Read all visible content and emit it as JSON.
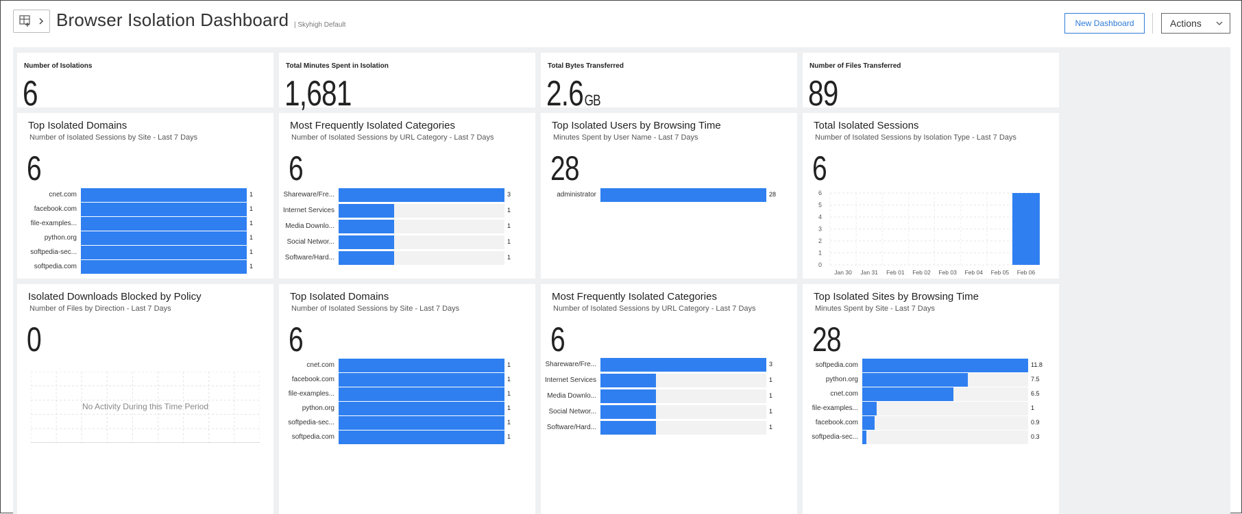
{
  "header": {
    "title": "Browser Isolation Dashboard",
    "subtitle": "| Skyhigh Default",
    "new_dashboard_label": "New Dashboard",
    "actions_label": "Actions"
  },
  "kpis": [
    {
      "label": "Number of Isolations",
      "value": "6",
      "unit": ""
    },
    {
      "label": "Total Minutes Spent in Isolation",
      "value": "1,681",
      "unit": ""
    },
    {
      "label": "Total Bytes Transferred",
      "value": "2.6",
      "unit": "GB"
    },
    {
      "label": "Number of Files Transferred",
      "value": "89",
      "unit": ""
    }
  ],
  "widgets": [
    {
      "title": "Top Isolated Domains",
      "subtitle": "Number of Isolated Sessions by Site - Last 7 Days",
      "big": "6",
      "chart_data": {
        "type": "bar",
        "categories": [
          "cnet.com",
          "facebook.com",
          "file-examples...",
          "python.org",
          "softpedia-sec...",
          "softpedia.com"
        ],
        "values": [
          1,
          1,
          1,
          1,
          1,
          1
        ],
        "value_labels": [
          "1",
          "1",
          "1",
          "1",
          "1",
          "1"
        ],
        "max": 1
      }
    },
    {
      "title": "Most Frequently Isolated Categories",
      "subtitle": "Number of Isolated Sessions by URL Category - Last 7 Days",
      "big": "6",
      "chart_data": {
        "type": "bar",
        "categories": [
          "Shareware/Fre...",
          "Internet Services",
          "Media Downlo...",
          "Social Networ...",
          "Software/Hard..."
        ],
        "values": [
          3,
          1,
          1,
          1,
          1
        ],
        "value_labels": [
          "3",
          "1",
          "1",
          "1",
          "1"
        ],
        "max": 3
      }
    },
    {
      "title": "Top Isolated Users by Browsing Time",
      "subtitle": "Minutes Spent by User Name - Last 7 Days",
      "big": "28",
      "chart_data": {
        "type": "bar",
        "categories": [
          "administrator"
        ],
        "values": [
          28
        ],
        "value_labels": [
          "28"
        ],
        "max": 28
      }
    },
    {
      "title": "Total Isolated Sessions",
      "subtitle": "Number of Isolated Sessions by Isolation Type - Last 7 Days",
      "big": "6",
      "chart_data": {
        "type": "bar",
        "categories": [
          "Jan 30",
          "Jan 31",
          "Feb 01",
          "Feb 02",
          "Feb 03",
          "Feb 04",
          "Feb 05",
          "Feb 06"
        ],
        "values": [
          0,
          0,
          0,
          0,
          0,
          0,
          0,
          6
        ],
        "yticks": [
          "0",
          "1",
          "2",
          "3",
          "4",
          "5",
          "6"
        ],
        "ylim": [
          0,
          6
        ],
        "grid": true
      }
    },
    {
      "title": "Isolated Downloads Blocked by Policy",
      "subtitle": "Number of Files by Direction - Last 7 Days",
      "big": "0",
      "empty_text": "No Activity During this Time Period"
    },
    {
      "title": "Top Isolated Domains",
      "subtitle": "Number of Isolated Sessions by Site - Last 7 Days",
      "big": "6",
      "chart_data": {
        "type": "bar",
        "categories": [
          "cnet.com",
          "facebook.com",
          "file-examples...",
          "python.org",
          "softpedia-sec...",
          "softpedia.com"
        ],
        "values": [
          1,
          1,
          1,
          1,
          1,
          1
        ],
        "value_labels": [
          "1",
          "1",
          "1",
          "1",
          "1",
          "1"
        ],
        "max": 1
      }
    },
    {
      "title": "Most Frequently Isolated Categories",
      "subtitle": "Number of Isolated Sessions by URL Category - Last 7 Days",
      "big": "6",
      "chart_data": {
        "type": "bar",
        "categories": [
          "Shareware/Fre...",
          "Internet Services",
          "Media Downlo...",
          "Social Networ...",
          "Software/Hard..."
        ],
        "values": [
          3,
          1,
          1,
          1,
          1
        ],
        "value_labels": [
          "3",
          "1",
          "1",
          "1",
          "1"
        ],
        "max": 3
      }
    },
    {
      "title": "Top Isolated Sites by Browsing Time",
      "subtitle": "Minutes Spent by Site - Last 7 Days",
      "big": "28",
      "chart_data": {
        "type": "bar",
        "categories": [
          "softpedia.com",
          "python.org",
          "cnet.com",
          "file-examples...",
          "facebook.com",
          "softpedia-sec..."
        ],
        "values": [
          11.8,
          7.5,
          6.5,
          1,
          0.9,
          0.3
        ],
        "value_labels": [
          "11.8",
          "7.5",
          "6.5",
          "1",
          "0.9",
          "0.3"
        ],
        "max": 11.8
      }
    }
  ],
  "colors": {
    "bar": "#2f7ff0",
    "track": "#f2f2f2",
    "accent": "#2f7bd8"
  }
}
